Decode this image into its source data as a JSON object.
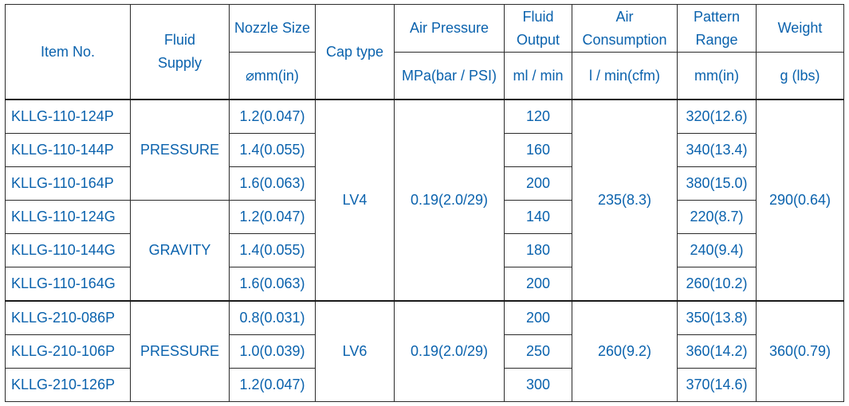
{
  "headers": {
    "item_no": "Item No.",
    "fluid_supply": [
      "Fluid",
      "Supply"
    ],
    "nozzle_size": "Nozzle Size",
    "nozzle_unit": "⌀mm(in)",
    "cap_type": "Cap type",
    "air_pressure": "Air Pressure",
    "air_pressure_unit": "MPa(bar / PSI)",
    "fluid_output": [
      "Fluid",
      "Output"
    ],
    "fluid_output_unit": "ml / min",
    "air_consumption": [
      "Air",
      "Consumption"
    ],
    "air_consumption_unit": "l / min(cfm)",
    "pattern_range": [
      "Pattern",
      "Range"
    ],
    "pattern_range_unit": "mm(in)",
    "weight": "Weight",
    "weight_unit": "g (lbs)"
  },
  "groups": [
    {
      "cap_type": "LV4",
      "air_pressure": "0.19(2.0/29)",
      "air_consumption": "235(8.3)",
      "weight": "290(0.64)",
      "subgroups": [
        {
          "fluid_supply": "PRESSURE",
          "rows": [
            {
              "item_no": "KLLG-110-124P",
              "nozzle": "1.2(0.047)",
              "output": "120",
              "pattern": "320(12.6)"
            },
            {
              "item_no": "KLLG-110-144P",
              "nozzle": "1.4(0.055)",
              "output": "160",
              "pattern": "340(13.4)"
            },
            {
              "item_no": "KLLG-110-164P",
              "nozzle": "1.6(0.063)",
              "output": "200",
              "pattern": "380(15.0)"
            }
          ]
        },
        {
          "fluid_supply": "GRAVITY",
          "rows": [
            {
              "item_no": "KLLG-110-124G",
              "nozzle": "1.2(0.047)",
              "output": "140",
              "pattern": "220(8.7)"
            },
            {
              "item_no": "KLLG-110-144G",
              "nozzle": "1.4(0.055)",
              "output": "180",
              "pattern": "240(9.4)"
            },
            {
              "item_no": "KLLG-110-164G",
              "nozzle": "1.6(0.063)",
              "output": "200",
              "pattern": "260(10.2)"
            }
          ]
        }
      ]
    },
    {
      "cap_type": "LV6",
      "air_pressure": "0.19(2.0/29)",
      "air_consumption": "260(9.2)",
      "weight": "360(0.79)",
      "subgroups": [
        {
          "fluid_supply": "PRESSURE",
          "rows": [
            {
              "item_no": "KLLG-210-086P",
              "nozzle": "0.8(0.031)",
              "output": "200",
              "pattern": "350(13.8)"
            },
            {
              "item_no": "KLLG-210-106P",
              "nozzle": "1.0(0.039)",
              "output": "250",
              "pattern": "360(14.2)"
            },
            {
              "item_no": "KLLG-210-126P",
              "nozzle": "1.2(0.047)",
              "output": "300",
              "pattern": "370(14.6)"
            }
          ]
        }
      ]
    }
  ],
  "colors": {
    "text": "#0a62ad",
    "border": "#2b2b2b",
    "background": "#ffffff"
  }
}
